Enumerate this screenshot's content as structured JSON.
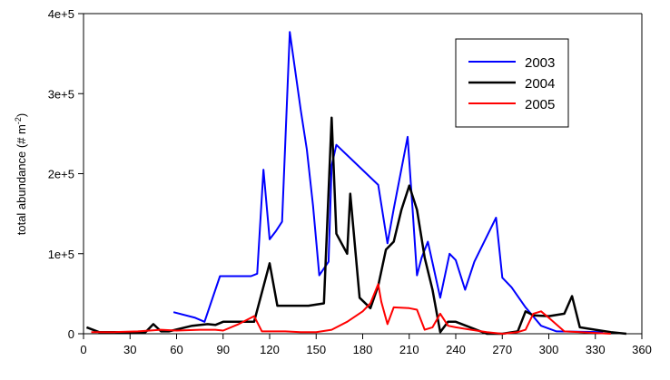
{
  "chart_data": {
    "type": "line",
    "ylabel_main": "total abundance (# m",
    "ylabel_sup": "-2",
    "ylabel_close": ")",
    "xlim": [
      0,
      360
    ],
    "ylim": [
      0,
      400000
    ],
    "x_ticks": [
      0,
      30,
      60,
      90,
      120,
      150,
      180,
      210,
      240,
      270,
      300,
      330,
      360
    ],
    "x_tick_labels": [
      "0",
      "30",
      "60",
      "90",
      "120",
      "150",
      "180",
      "210",
      "240",
      "270",
      "300",
      "330",
      "360"
    ],
    "y_ticks": [
      0,
      100000,
      200000,
      300000,
      400000
    ],
    "y_tick_labels": [
      "0",
      "1e+5",
      "2e+5",
      "3e+5",
      "4e+5"
    ],
    "grid": false,
    "legend_position": "top-right",
    "series": [
      {
        "name": "2003",
        "color": "#0000ff",
        "x": [
          58,
          72,
          78,
          88,
          108,
          112,
          116,
          120,
          124,
          128,
          133,
          140,
          144,
          148,
          152,
          158,
          160,
          163,
          190,
          196,
          200,
          209,
          212,
          215,
          218,
          222,
          226,
          230,
          236,
          240,
          246,
          252,
          266,
          270,
          276,
          285,
          295,
          305,
          335
        ],
        "y": [
          27000,
          20000,
          15000,
          72000,
          72000,
          75000,
          205000,
          118000,
          128000,
          140000,
          377000,
          280000,
          230000,
          160000,
          73000,
          90000,
          210000,
          236000,
          186000,
          113000,
          156000,
          246000,
          160000,
          73000,
          95000,
          115000,
          80000,
          45000,
          100000,
          92000,
          55000,
          90000,
          145000,
          70000,
          58000,
          33000,
          10000,
          3000,
          2000
        ]
      },
      {
        "name": "2004",
        "color": "#000000",
        "x": [
          2,
          10,
          40,
          45,
          50,
          55,
          70,
          80,
          85,
          90,
          100,
          110,
          120,
          125,
          135,
          145,
          155,
          160,
          163,
          170,
          172,
          178,
          185,
          190,
          195,
          200,
          205,
          210,
          215,
          220,
          225,
          230,
          235,
          240,
          260,
          270,
          280,
          285,
          290,
          300,
          310,
          315,
          320,
          330,
          340,
          350
        ],
        "y": [
          8000,
          2000,
          2000,
          12000,
          3000,
          3000,
          10000,
          12000,
          11000,
          15000,
          15000,
          15000,
          88000,
          35000,
          35000,
          35000,
          38000,
          270000,
          125000,
          100000,
          175000,
          45000,
          32000,
          60000,
          105000,
          115000,
          155000,
          185000,
          155000,
          95000,
          55000,
          2000,
          15000,
          15000,
          0,
          0,
          3000,
          28000,
          23000,
          22000,
          25000,
          47000,
          8000,
          5000,
          2000,
          0
        ]
      },
      {
        "name": "2005",
        "color": "#ff0000",
        "x": [
          5,
          20,
          35,
          50,
          60,
          75,
          85,
          90,
          100,
          110,
          115,
          130,
          140,
          150,
          160,
          170,
          180,
          185,
          190,
          192,
          196,
          200,
          210,
          215,
          220,
          225,
          230,
          235,
          240,
          250,
          260,
          270,
          280,
          285,
          290,
          295,
          300,
          310,
          320,
          340
        ],
        "y": [
          2000,
          2000,
          3000,
          5000,
          4000,
          5000,
          5000,
          4000,
          12000,
          22000,
          3000,
          3000,
          2000,
          2000,
          5000,
          15000,
          28000,
          38000,
          62000,
          40000,
          12000,
          33000,
          32000,
          30000,
          5000,
          8000,
          25000,
          10000,
          8000,
          5000,
          2000,
          0,
          2000,
          5000,
          25000,
          28000,
          20000,
          3000,
          2000,
          0
        ]
      }
    ]
  }
}
